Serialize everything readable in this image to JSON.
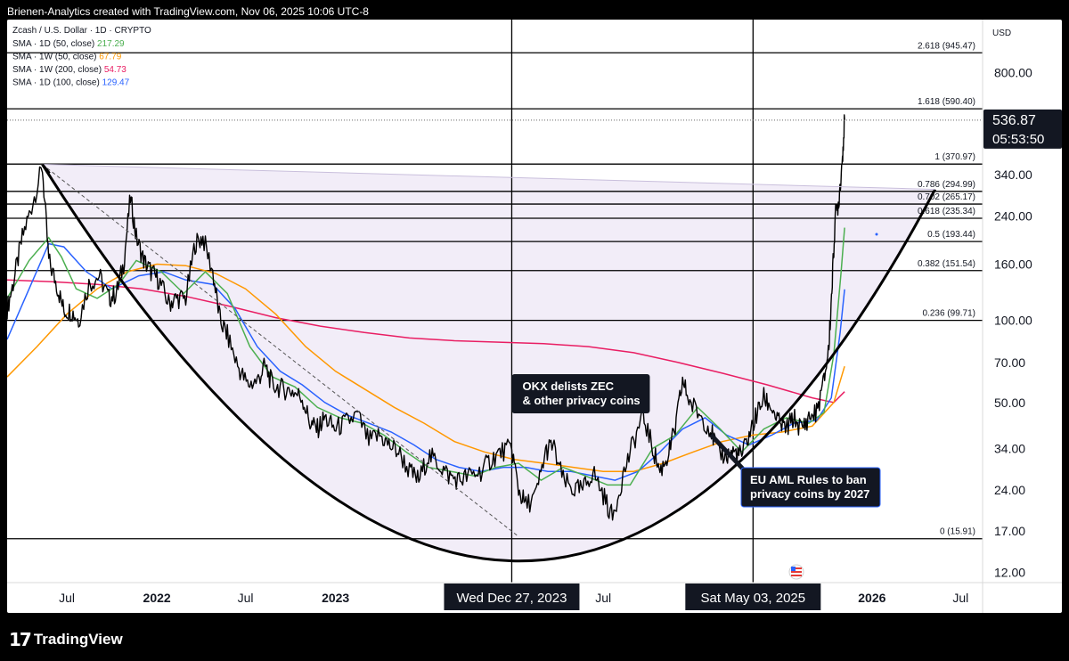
{
  "header": {
    "attribution": "Brienen-Analytics created with TradingView.com, Nov 06, 2025 10:06 UTC-8"
  },
  "footer": {
    "brand": "TradingView",
    "logo_icon": "tradingview-logo-icon"
  },
  "chart_data": {
    "type": "candlestick",
    "symbol_line": "Zcash / U.S. Dollar · 1D · CRYPTO",
    "currency": "USD",
    "scale": "log",
    "y_range": [
      11,
      1250
    ],
    "x_range": [
      "2021-03-01",
      "2026-08-15"
    ],
    "indicators": [
      {
        "label": "SMA · 1D (50, close)",
        "value": "217.29",
        "color": "#4caf50"
      },
      {
        "label": "SMA · 1W (50, close)",
        "value": "67.79",
        "color": "#ff9800"
      },
      {
        "label": "SMA · 1W (200, close)",
        "value": "54.73",
        "color": "#e91e63"
      },
      {
        "label": "SMA · 1D (100, close)",
        "value": "129.47",
        "color": "#2962ff"
      }
    ],
    "price_ticks": [
      {
        "label": "800.00",
        "value": 800
      },
      {
        "label": "340.00",
        "value": 340
      },
      {
        "label": "240.00",
        "value": 240
      },
      {
        "label": "160.00",
        "value": 160
      },
      {
        "label": "100.00",
        "value": 100
      },
      {
        "label": "70.00",
        "value": 70
      },
      {
        "label": "50.00",
        "value": 50
      },
      {
        "label": "34.00",
        "value": 34
      },
      {
        "label": "24.00",
        "value": 24
      },
      {
        "label": "17.00",
        "value": 17
      },
      {
        "label": "12.00",
        "value": 12
      }
    ],
    "time_ticks": [
      {
        "label": "Jul",
        "date": "2021-07-01",
        "bold": false
      },
      {
        "label": "2022",
        "date": "2022-01-01",
        "bold": true
      },
      {
        "label": "Jul",
        "date": "2022-07-01",
        "bold": false
      },
      {
        "label": "2023",
        "date": "2023-01-01",
        "bold": true
      },
      {
        "label": "Jul",
        "date": "2024-07-01",
        "bold": false
      },
      {
        "label": "2026",
        "date": "2026-01-01",
        "bold": true
      },
      {
        "label": "Jul",
        "date": "2026-07-01",
        "bold": false
      }
    ],
    "fib_levels": [
      {
        "label": "2.618 (945.47)",
        "value": 945.47
      },
      {
        "label": "1.618 (590.40)",
        "value": 590.4
      },
      {
        "label": "1 (370.97)",
        "value": 370.97
      },
      {
        "label": "0.786 (294.99)",
        "value": 294.99
      },
      {
        "label": "0.702 (265.17)",
        "value": 265.17
      },
      {
        "label": "0.618 (235.34)",
        "value": 235.34
      },
      {
        "label": "0.5 (193.44)",
        "value": 193.44
      },
      {
        "label": "0.382 (151.54)",
        "value": 151.54
      },
      {
        "label": "0.236 (99.71)",
        "value": 99.71
      },
      {
        "label": "0 (15.91)",
        "value": 15.91
      }
    ],
    "fib_range_dates": [
      "2021-03-01",
      "2026-05-15"
    ],
    "vertical_markers": [
      {
        "label": "Wed Dec 27, 2023",
        "date": "2023-12-27"
      },
      {
        "label": "Sat May 03, 2025",
        "date": "2025-05-03"
      }
    ],
    "annotations": [
      {
        "lines": [
          "OKX delists ZEC",
          "& other privacy coins"
        ],
        "date": "2023-12-27",
        "price": 48
      },
      {
        "lines": [
          "EU AML Rules to ban",
          "privacy coins by 2027"
        ],
        "date": "2025-06-10",
        "price": 26
      }
    ],
    "last_price": {
      "value": 536.87,
      "label": "536.87",
      "countdown": "05:53:50"
    },
    "cup": {
      "start": [
        "2021-05-12",
        370
      ],
      "bottom": [
        "2023-12-27",
        13.2
      ],
      "end": [
        "2026-05-10",
        300
      ]
    },
    "downtrend": {
      "start": [
        "2021-05-12",
        370
      ],
      "end": [
        "2024-01-10",
        16.2
      ]
    },
    "price_path": [
      [
        "2021-03-01",
        110
      ],
      [
        "2021-03-15",
        140
      ],
      [
        "2021-04-01",
        200
      ],
      [
        "2021-04-20",
        260
      ],
      [
        "2021-05-12",
        360
      ],
      [
        "2021-05-25",
        165
      ],
      [
        "2021-06-10",
        135
      ],
      [
        "2021-06-25",
        108
      ],
      [
        "2021-07-10",
        108
      ],
      [
        "2021-07-25",
        100
      ],
      [
        "2021-08-15",
        135
      ],
      [
        "2021-09-05",
        145
      ],
      [
        "2021-09-25",
        120
      ],
      [
        "2021-10-10",
        125
      ],
      [
        "2021-10-25",
        160
      ],
      [
        "2021-11-08",
        280
      ],
      [
        "2021-11-20",
        200
      ],
      [
        "2021-12-05",
        165
      ],
      [
        "2021-12-20",
        150
      ],
      [
        "2022-01-05",
        140
      ],
      [
        "2022-01-25",
        115
      ],
      [
        "2022-02-10",
        120
      ],
      [
        "2022-03-01",
        120
      ],
      [
        "2022-03-20",
        190
      ],
      [
        "2022-04-05",
        200
      ],
      [
        "2022-04-25",
        150
      ],
      [
        "2022-05-10",
        100
      ],
      [
        "2022-05-25",
        88
      ],
      [
        "2022-06-15",
        68
      ],
      [
        "2022-07-05",
        58
      ],
      [
        "2022-07-25",
        60
      ],
      [
        "2022-08-10",
        68
      ],
      [
        "2022-08-25",
        58
      ],
      [
        "2022-09-15",
        56
      ],
      [
        "2022-10-05",
        55
      ],
      [
        "2022-10-25",
        52
      ],
      [
        "2022-11-10",
        42
      ],
      [
        "2022-11-25",
        40
      ],
      [
        "2022-12-10",
        44
      ],
      [
        "2022-12-30",
        40
      ],
      [
        "2023-01-20",
        42
      ],
      [
        "2023-02-15",
        45
      ],
      [
        "2023-03-10",
        36
      ],
      [
        "2023-04-01",
        38
      ],
      [
        "2023-04-20",
        35
      ],
      [
        "2023-05-10",
        33
      ],
      [
        "2023-06-01",
        28
      ],
      [
        "2023-06-20",
        26
      ],
      [
        "2023-07-10",
        32
      ],
      [
        "2023-07-30",
        30
      ],
      [
        "2023-08-20",
        27
      ],
      [
        "2023-09-10",
        26
      ],
      [
        "2023-10-01",
        27
      ],
      [
        "2023-10-25",
        28
      ],
      [
        "2023-11-15",
        31
      ],
      [
        "2023-12-05",
        33
      ],
      [
        "2023-12-27",
        34
      ],
      [
        "2024-01-10",
        24
      ],
      [
        "2024-01-25",
        21
      ],
      [
        "2024-02-15",
        23
      ],
      [
        "2024-03-05",
        33
      ],
      [
        "2024-03-20",
        35
      ],
      [
        "2024-04-10",
        26
      ],
      [
        "2024-05-01",
        24
      ],
      [
        "2024-05-20",
        24
      ],
      [
        "2024-06-10",
        28
      ],
      [
        "2024-07-01",
        23
      ],
      [
        "2024-07-20",
        19
      ],
      [
        "2024-08-10",
        27
      ],
      [
        "2024-08-30",
        35
      ],
      [
        "2024-09-20",
        45
      ],
      [
        "2024-10-10",
        34
      ],
      [
        "2024-10-25",
        28
      ],
      [
        "2024-11-10",
        32
      ],
      [
        "2024-11-25",
        40
      ],
      [
        "2024-12-10",
        60
      ],
      [
        "2024-12-25",
        50
      ],
      [
        "2025-01-15",
        45
      ],
      [
        "2025-02-05",
        40
      ],
      [
        "2025-02-20",
        33
      ],
      [
        "2025-03-10",
        32
      ],
      [
        "2025-03-25",
        33
      ],
      [
        "2025-04-10",
        32
      ],
      [
        "2025-04-25",
        38
      ],
      [
        "2025-05-10",
        45
      ],
      [
        "2025-05-25",
        52
      ],
      [
        "2025-06-10",
        48
      ],
      [
        "2025-06-25",
        42
      ],
      [
        "2025-07-10",
        40
      ],
      [
        "2025-07-25",
        44
      ],
      [
        "2025-08-10",
        40
      ],
      [
        "2025-08-25",
        44
      ],
      [
        "2025-09-10",
        46
      ],
      [
        "2025-09-25",
        60
      ],
      [
        "2025-10-05",
        80
      ],
      [
        "2025-10-12",
        140
      ],
      [
        "2025-10-18",
        240
      ],
      [
        "2025-10-25",
        270
      ],
      [
        "2025-11-01",
        380
      ],
      [
        "2025-11-06",
        536.87
      ]
    ],
    "sma_1d_50": [
      [
        "2021-03-01",
        120
      ],
      [
        "2021-04-15",
        165
      ],
      [
        "2021-05-25",
        200
      ],
      [
        "2021-06-20",
        170
      ],
      [
        "2021-07-20",
        130
      ],
      [
        "2021-09-01",
        120
      ],
      [
        "2021-10-15",
        135
      ],
      [
        "2021-11-20",
        165
      ],
      [
        "2022-01-10",
        150
      ],
      [
        "2022-02-25",
        125
      ],
      [
        "2022-04-10",
        150
      ],
      [
        "2022-05-25",
        125
      ],
      [
        "2022-07-10",
        80
      ],
      [
        "2022-08-25",
        62
      ],
      [
        "2022-10-10",
        57
      ],
      [
        "2022-11-25",
        48
      ],
      [
        "2023-01-10",
        44
      ],
      [
        "2023-02-25",
        42
      ],
      [
        "2023-04-10",
        38
      ],
      [
        "2023-05-25",
        33
      ],
      [
        "2023-07-10",
        29
      ],
      [
        "2023-08-25",
        28
      ],
      [
        "2023-10-10",
        27
      ],
      [
        "2023-11-25",
        29
      ],
      [
        "2024-01-10",
        30
      ],
      [
        "2024-02-25",
        26
      ],
      [
        "2024-04-10",
        29
      ],
      [
        "2024-05-25",
        27
      ],
      [
        "2024-07-10",
        25
      ],
      [
        "2024-08-25",
        25
      ],
      [
        "2024-10-10",
        34
      ],
      [
        "2024-11-25",
        38
      ],
      [
        "2025-01-10",
        48
      ],
      [
        "2025-02-25",
        40
      ],
      [
        "2025-04-10",
        33
      ],
      [
        "2025-05-25",
        40
      ],
      [
        "2025-07-10",
        44
      ],
      [
        "2025-08-25",
        42
      ],
      [
        "2025-09-25",
        46
      ],
      [
        "2025-10-15",
        75
      ],
      [
        "2025-10-30",
        150
      ],
      [
        "2025-11-06",
        217.29
      ]
    ],
    "sma_1d_100": [
      [
        "2021-03-01",
        85
      ],
      [
        "2021-04-15",
        130
      ],
      [
        "2021-05-25",
        190
      ],
      [
        "2021-06-25",
        185
      ],
      [
        "2021-08-10",
        150
      ],
      [
        "2021-10-01",
        130
      ],
      [
        "2021-11-25",
        145
      ],
      [
        "2022-01-15",
        150
      ],
      [
        "2022-03-01",
        140
      ],
      [
        "2022-04-25",
        135
      ],
      [
        "2022-06-10",
        110
      ],
      [
        "2022-07-25",
        80
      ],
      [
        "2022-09-10",
        65
      ],
      [
        "2022-10-25",
        58
      ],
      [
        "2022-12-10",
        50
      ],
      [
        "2023-01-25",
        45
      ],
      [
        "2023-03-10",
        42
      ],
      [
        "2023-04-25",
        39
      ],
      [
        "2023-06-10",
        35
      ],
      [
        "2023-07-25",
        31
      ],
      [
        "2023-09-10",
        29
      ],
      [
        "2023-10-25",
        28
      ],
      [
        "2023-12-10",
        29
      ],
      [
        "2024-01-25",
        29
      ],
      [
        "2024-03-10",
        28
      ],
      [
        "2024-04-25",
        28
      ],
      [
        "2024-06-10",
        27
      ],
      [
        "2024-07-25",
        26
      ],
      [
        "2024-09-10",
        28
      ],
      [
        "2024-10-25",
        33
      ],
      [
        "2024-12-10",
        40
      ],
      [
        "2025-01-25",
        44
      ],
      [
        "2025-03-10",
        38
      ],
      [
        "2025-04-25",
        35
      ],
      [
        "2025-06-10",
        38
      ],
      [
        "2025-07-25",
        42
      ],
      [
        "2025-09-10",
        43
      ],
      [
        "2025-10-10",
        52
      ],
      [
        "2025-10-28",
        90
      ],
      [
        "2025-11-06",
        129.47
      ]
    ],
    "sma_1w_50": [
      [
        "2021-03-01",
        62
      ],
      [
        "2021-05-01",
        80
      ],
      [
        "2021-07-01",
        105
      ],
      [
        "2021-09-01",
        130
      ],
      [
        "2021-11-01",
        150
      ],
      [
        "2022-01-01",
        160
      ],
      [
        "2022-03-01",
        158
      ],
      [
        "2022-05-01",
        148
      ],
      [
        "2022-07-01",
        130
      ],
      [
        "2022-09-01",
        105
      ],
      [
        "2022-11-01",
        80
      ],
      [
        "2023-01-01",
        65
      ],
      [
        "2023-03-01",
        56
      ],
      [
        "2023-05-01",
        48
      ],
      [
        "2023-07-01",
        42
      ],
      [
        "2023-09-01",
        36
      ],
      [
        "2023-11-01",
        33
      ],
      [
        "2024-01-01",
        31
      ],
      [
        "2024-03-01",
        30
      ],
      [
        "2024-05-01",
        29
      ],
      [
        "2024-07-01",
        28
      ],
      [
        "2024-09-01",
        28
      ],
      [
        "2024-11-01",
        30
      ],
      [
        "2025-01-01",
        33
      ],
      [
        "2025-03-01",
        36
      ],
      [
        "2025-05-01",
        38
      ],
      [
        "2025-07-01",
        39
      ],
      [
        "2025-09-01",
        41
      ],
      [
        "2025-10-15",
        50
      ],
      [
        "2025-11-06",
        67.79
      ]
    ],
    "sma_1w_200": [
      [
        "2021-03-01",
        140
      ],
      [
        "2021-06-01",
        138
      ],
      [
        "2021-09-01",
        135
      ],
      [
        "2021-12-01",
        130
      ],
      [
        "2022-03-01",
        122
      ],
      [
        "2022-06-01",
        112
      ],
      [
        "2022-09-01",
        102
      ],
      [
        "2022-12-01",
        95
      ],
      [
        "2023-03-01",
        90
      ],
      [
        "2023-06-01",
        86
      ],
      [
        "2023-09-01",
        84
      ],
      [
        "2023-12-01",
        83
      ],
      [
        "2024-03-01",
        82
      ],
      [
        "2024-06-01",
        80
      ],
      [
        "2024-09-01",
        76
      ],
      [
        "2024-12-01",
        70
      ],
      [
        "2025-03-01",
        64
      ],
      [
        "2025-06-01",
        58
      ],
      [
        "2025-09-01",
        52
      ],
      [
        "2025-10-15",
        50
      ],
      [
        "2025-11-06",
        54.73
      ]
    ]
  }
}
